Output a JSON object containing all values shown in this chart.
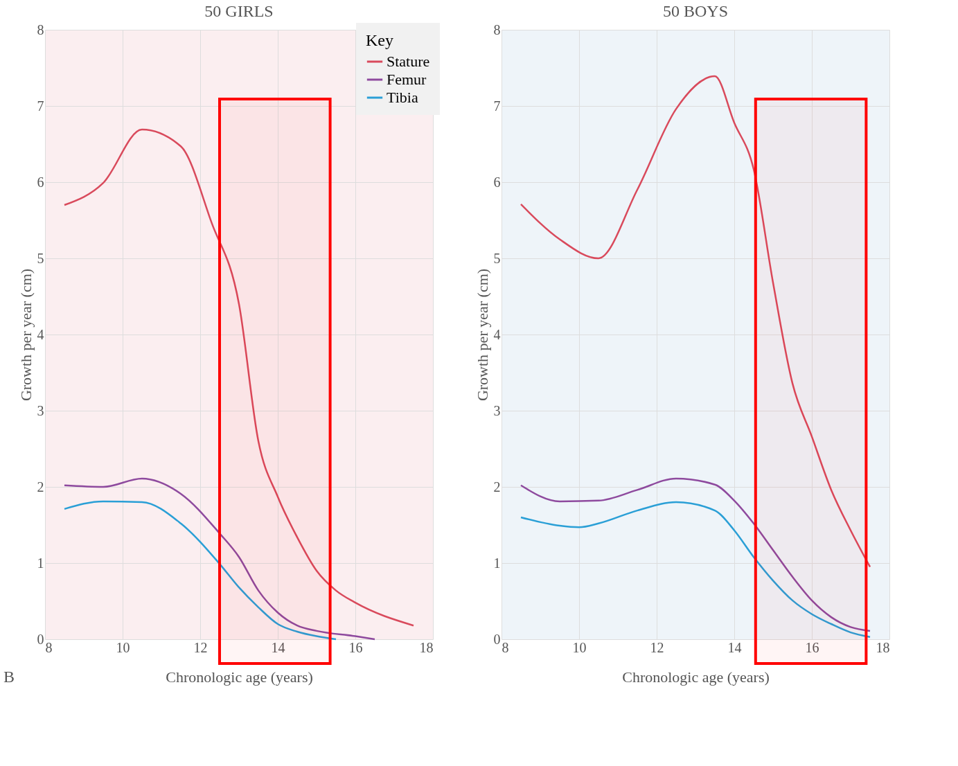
{
  "chart_data": [
    {
      "type": "line",
      "title": "50 GIRLS",
      "xlabel": "Chronologic age (years)",
      "ylabel": "Growth per year (cm)",
      "xlim": [
        8,
        18
      ],
      "xticks": [
        8,
        10,
        12,
        14,
        16,
        18
      ],
      "ylim": [
        0,
        8
      ],
      "yticks": [
        0,
        1,
        2,
        3,
        4,
        5,
        6,
        7,
        8
      ],
      "grid": true,
      "legend": "top right",
      "legend_title": "Key",
      "annotations": [
        "B"
      ],
      "bands": [
        {
          "axis": "x",
          "from": 12.5,
          "to": 15.35,
          "color": "#ff0000"
        }
      ],
      "series": [
        {
          "name": "Stature",
          "color": "#d94a5c",
          "x": [
            8.5,
            9.5,
            10.5,
            11.5,
            12.3,
            13,
            13.5,
            14,
            14.5,
            15,
            15.5,
            16,
            17.5
          ],
          "values": [
            5.7,
            5.99,
            6.69,
            6.47,
            5.46,
            4.4,
            2.6,
            1.87,
            1.34,
            0.9,
            0.64,
            0.48,
            0.18
          ]
        },
        {
          "name": "Femur",
          "color": "#8e4a9e",
          "x": [
            8.5,
            9.5,
            10.5,
            11.5,
            12.5,
            13,
            13.5,
            14,
            14.5,
            15,
            16,
            16.5
          ],
          "values": [
            2.02,
            2.0,
            2.11,
            1.91,
            1.39,
            1.08,
            0.64,
            0.35,
            0.18,
            0.11,
            0.04,
            0
          ]
        },
        {
          "name": "Tibia",
          "color": "#2a9fd6",
          "x": [
            8.5,
            9.5,
            10.5,
            11.5,
            12.5,
            13,
            13.5,
            14,
            14.5,
            15,
            15.5
          ],
          "values": [
            1.71,
            1.81,
            1.8,
            1.52,
            0.99,
            0.68,
            0.42,
            0.2,
            0.1,
            0.04,
            0
          ]
        }
      ]
    },
    {
      "type": "line",
      "title": "50 BOYS",
      "xlabel": "Chronologic age (years)",
      "ylabel": "Growth per year (cm)",
      "xlim": [
        8,
        18
      ],
      "xticks": [
        8,
        10,
        12,
        14,
        16,
        18
      ],
      "ylim": [
        0,
        8
      ],
      "yticks": [
        0,
        1,
        2,
        3,
        4,
        5,
        6,
        7,
        8
      ],
      "grid": true,
      "bands": [
        {
          "axis": "x",
          "from": 14.55,
          "to": 17.4,
          "color": "#ff0000"
        }
      ],
      "series": [
        {
          "color": "#d94a5c",
          "x": [
            8.5,
            9.5,
            10.5,
            11.5,
            12.5,
            13.5,
            14,
            14.5,
            15,
            15.5,
            16,
            16.5,
            17,
            17.5
          ],
          "values": [
            5.71,
            5.25,
            5.0,
            5.9,
            6.96,
            7.39,
            6.78,
            6.17,
            4.68,
            3.36,
            2.66,
            1.96,
            1.43,
            0.95
          ]
        },
        {
          "color": "#8e4a9e",
          "x": [
            8.5,
            9.5,
            10.5,
            11.5,
            12.5,
            13.5,
            14,
            14.5,
            15,
            15.5,
            16,
            16.5,
            17,
            17.5
          ],
          "values": [
            2.02,
            1.81,
            1.82,
            1.96,
            2.11,
            2.03,
            1.82,
            1.52,
            1.17,
            0.82,
            0.51,
            0.29,
            0.16,
            0.11
          ]
        },
        {
          "color": "#2a9fd6",
          "x": [
            8.5,
            9.5,
            10,
            10.5,
            11.5,
            12.5,
            13.5,
            14,
            14.5,
            15,
            15.5,
            16,
            16.5,
            17,
            17.5
          ],
          "values": [
            1.6,
            1.49,
            1.47,
            1.52,
            1.69,
            1.8,
            1.69,
            1.43,
            1.08,
            0.77,
            0.51,
            0.33,
            0.2,
            0.09,
            0.03
          ]
        }
      ]
    }
  ]
}
